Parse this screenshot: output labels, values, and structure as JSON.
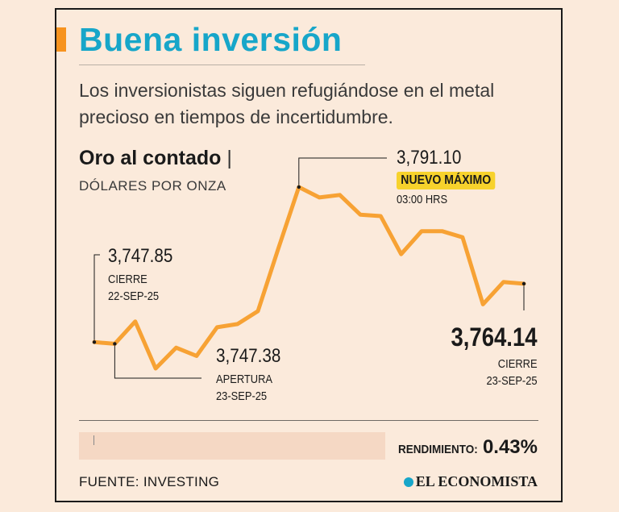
{
  "header": {
    "title": "Buena inversión",
    "subtitle": "Los inversionistas siguen refugiándose en el metal precioso en tiempos de incertidumbre."
  },
  "series": {
    "title": "Oro al contado",
    "separator": "|",
    "unit": "DÓLARES POR ONZA"
  },
  "annotations": {
    "start": {
      "value": "3,747.85",
      "label1": "CIERRE",
      "label2": "22-SEP-25"
    },
    "open": {
      "value": "3,747.38",
      "label1": "APERTURA",
      "label2": "23-SEP-25"
    },
    "peak": {
      "value": "3,791.10",
      "badge": "NUEVO MÁXIMO",
      "time": "03:00 HRS"
    },
    "end": {
      "value": "3,764.14",
      "label1": "CIERRE",
      "label2": "23-SEP-25"
    }
  },
  "yield": {
    "label": "RENDIMIENTO:",
    "value": "0.43%"
  },
  "footer": {
    "source": "FUENTE: INVESTING",
    "brand": "EL ECONOMISTA"
  },
  "colors": {
    "line": "#f7a234",
    "title": "#17a6c9",
    "accent": "#f7931e",
    "badge": "#f7d22c"
  },
  "chart_data": {
    "type": "line",
    "title": "Oro al contado",
    "ylabel": "Dólares por onza",
    "xlabel": "",
    "x": [
      0,
      1,
      2,
      3,
      4,
      5,
      6,
      7,
      8,
      9,
      10,
      11,
      12,
      13,
      14,
      15,
      16,
      17,
      18,
      19,
      20,
      21
    ],
    "values": [
      3747.85,
      3747.38,
      3753.6,
      3740.5,
      3746.3,
      3744.0,
      3752.0,
      3752.9,
      3756.5,
      3774.0,
      3791.1,
      3788.2,
      3788.9,
      3783.4,
      3783.0,
      3772.4,
      3778.8,
      3778.8,
      3777.1,
      3758.4,
      3764.6,
      3764.14
    ],
    "ylim": [
      3735,
      3795
    ],
    "annotations": [
      {
        "index": 0,
        "text": "3,747.85 CIERRE 22-SEP-25"
      },
      {
        "index": 1,
        "text": "3,747.38 APERTURA 23-SEP-25"
      },
      {
        "index": 10,
        "text": "3,791.10 NUEVO MÁXIMO 03:00 HRS"
      },
      {
        "index": 21,
        "text": "3,764.14 CIERRE 23-SEP-25"
      }
    ]
  }
}
